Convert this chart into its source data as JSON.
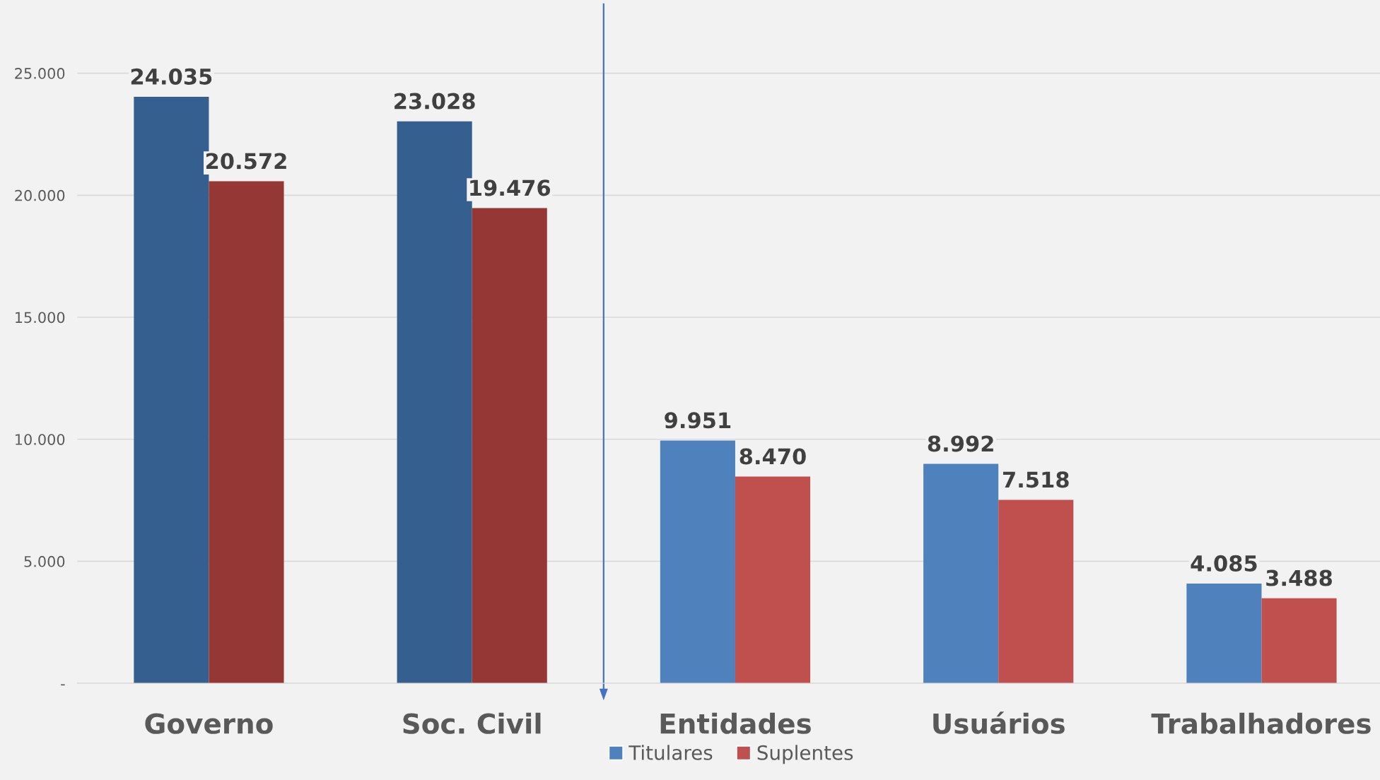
{
  "chart_data": {
    "type": "bar",
    "categories": [
      "Governo",
      "Soc. Civil",
      "Entidades",
      "Usuários",
      "Trabalhadores"
    ],
    "series": [
      {
        "name": "Titulares",
        "color": "#4f81bd",
        "colors": [
          "#355f8f",
          "#355f8f",
          "#4f81bd",
          "#4f81bd",
          "#4f81bd"
        ],
        "values": [
          24035,
          23028,
          9951,
          8992,
          4085
        ],
        "value_labels": [
          "24.035",
          "23.028",
          "9.951",
          "8.992",
          "4.085"
        ]
      },
      {
        "name": "Suplentes",
        "color": "#c0504d",
        "colors": [
          "#953735",
          "#953735",
          "#c0504d",
          "#c0504d",
          "#c0504d"
        ],
        "values": [
          20572,
          19476,
          8470,
          7518,
          3488
        ],
        "value_labels": [
          "20.572",
          "19.476",
          "8.470",
          "7.518",
          "3.488"
        ]
      }
    ],
    "ylim": [
      0,
      28000
    ],
    "yticks": [
      {
        "value": 0,
        "label": "-"
      },
      {
        "value": 5000,
        "label": "5.000"
      },
      {
        "value": 10000,
        "label": "10.000"
      },
      {
        "value": 15000,
        "label": "15.000"
      },
      {
        "value": 20000,
        "label": "20.000"
      },
      {
        "value": 25000,
        "label": "25.000"
      }
    ],
    "grid": "y",
    "legend": "bottom"
  }
}
